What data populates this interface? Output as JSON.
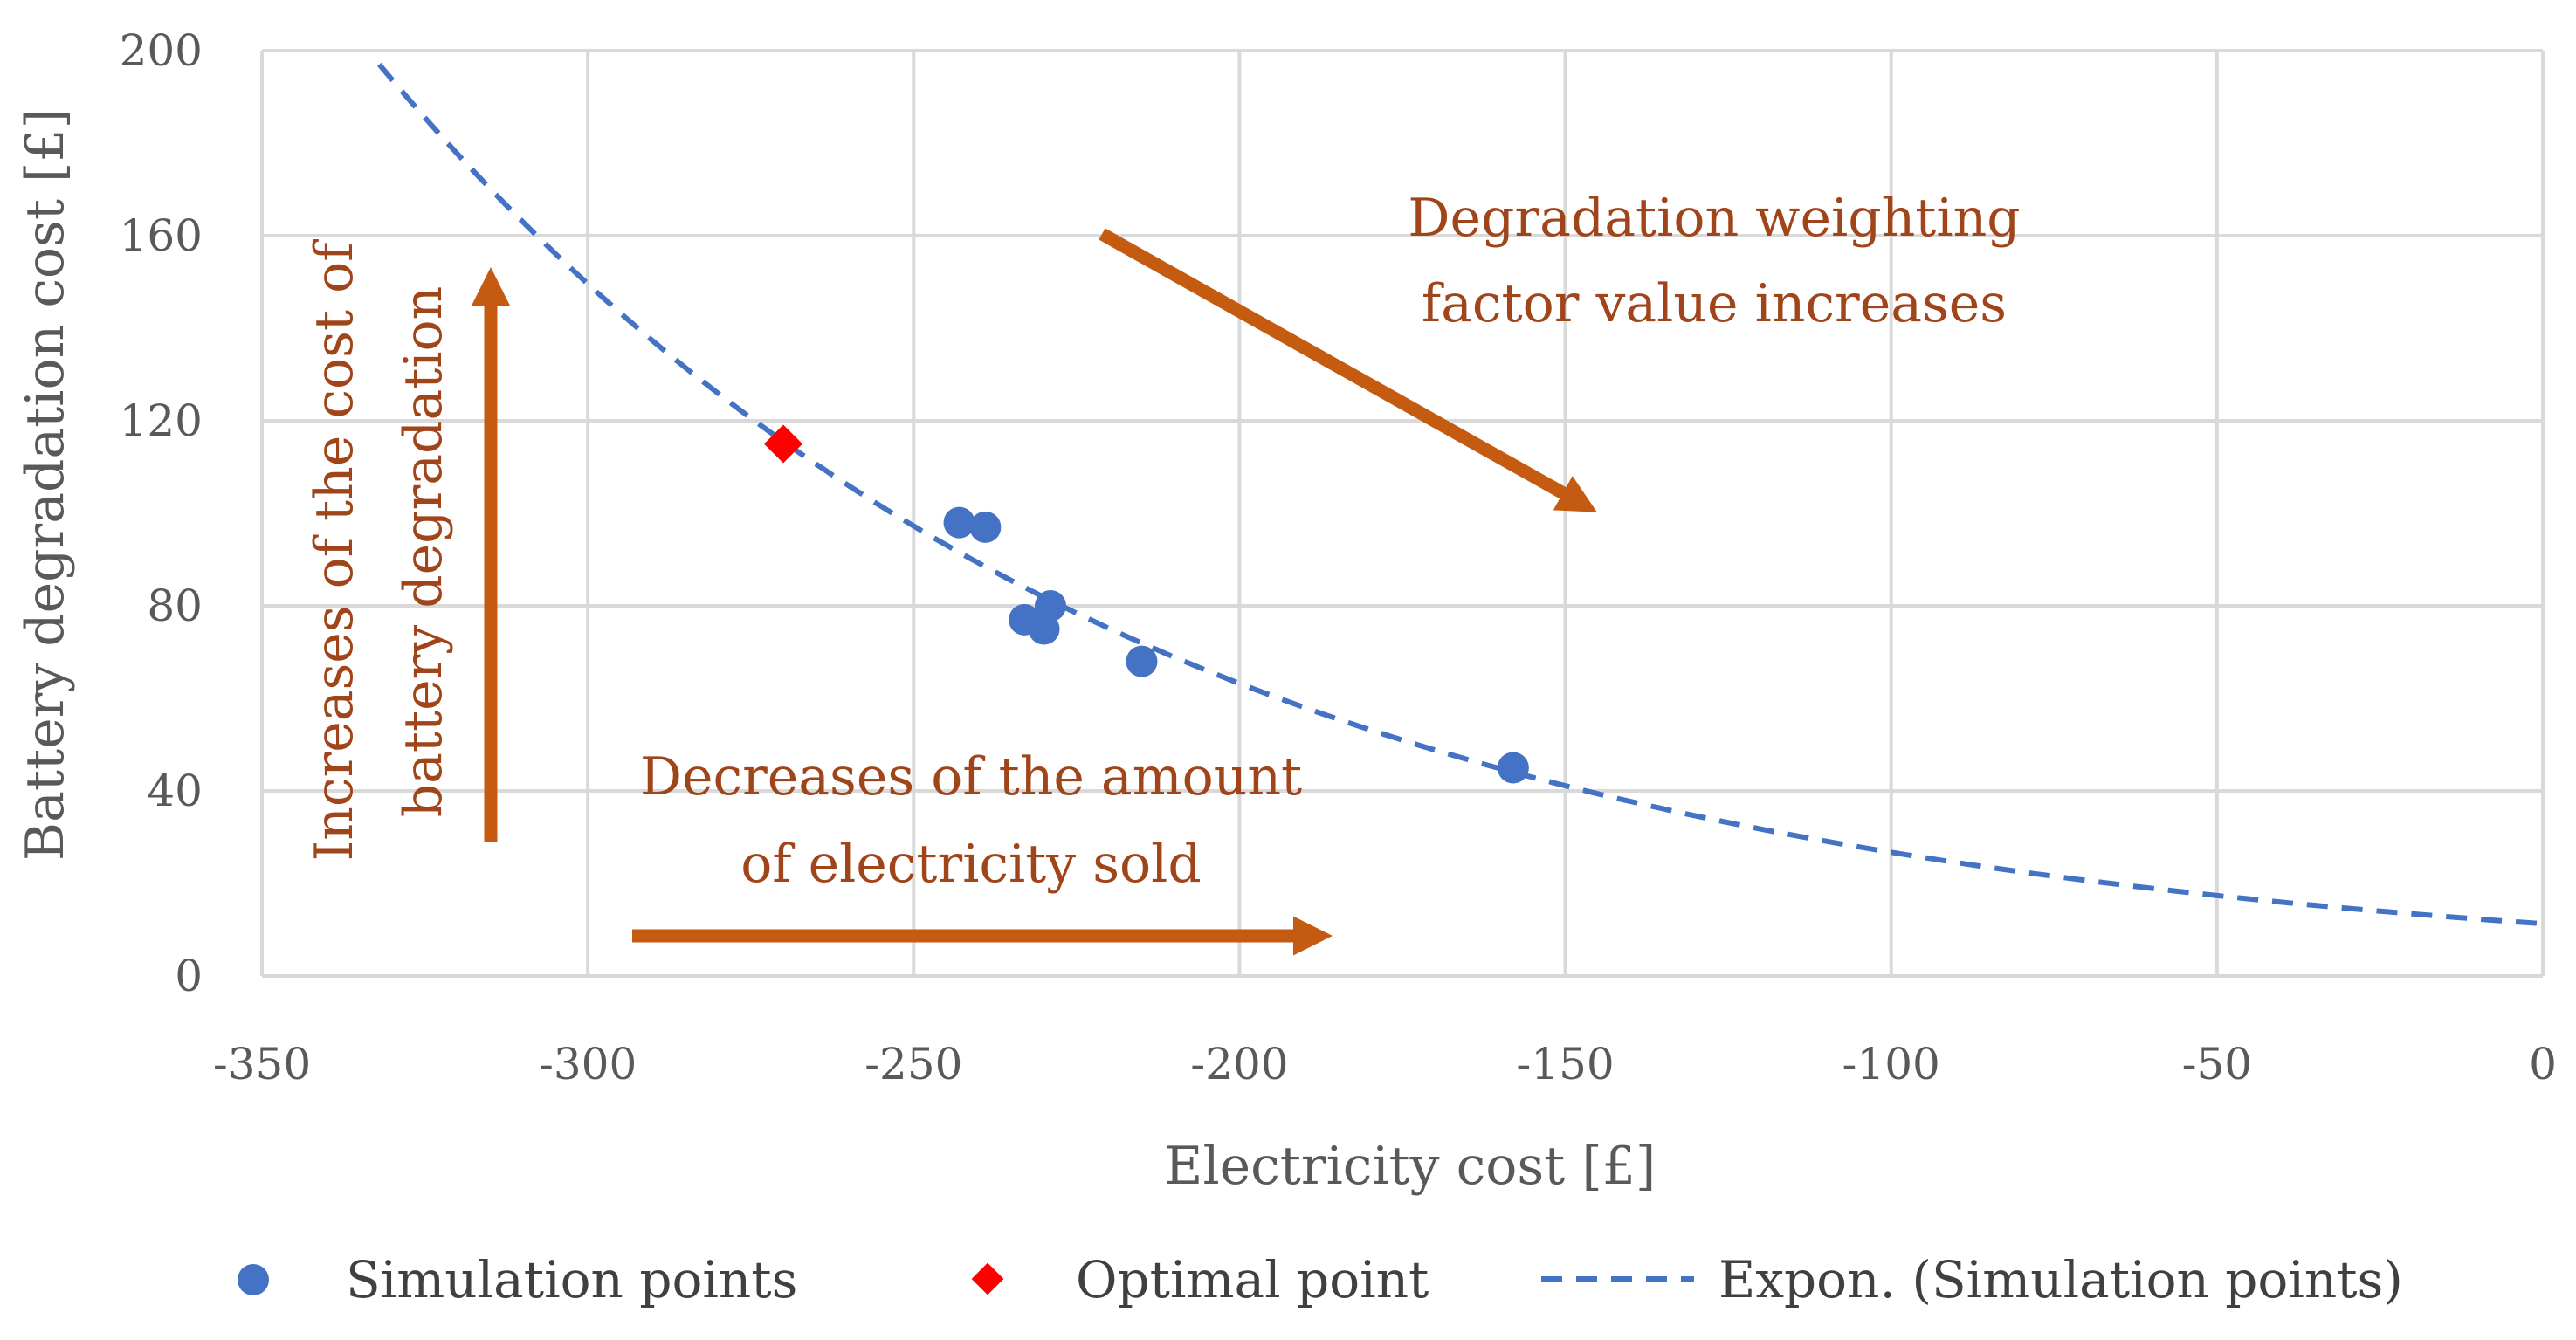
{
  "chart_data": {
    "type": "scatter",
    "title": "",
    "xlabel": "Electricity cost [£]",
    "ylabel": "Battery degradation cost [£]",
    "xlim": [
      -350,
      0
    ],
    "ylim": [
      0,
      200
    ],
    "x_ticks": [
      -350,
      -300,
      -250,
      -200,
      -150,
      -100,
      -50,
      0
    ],
    "y_ticks": [
      0,
      40,
      80,
      120,
      160,
      200
    ],
    "x_tick_labels": [
      "-350",
      "-300",
      "-250",
      "-200",
      "-150",
      "-100",
      "-50",
      "0"
    ],
    "y_tick_labels": [
      "0",
      "40",
      "80",
      "120",
      "160",
      "200"
    ],
    "grid": true,
    "series": [
      {
        "name": "Simulation points",
        "marker": "circle",
        "color": "#4472C4",
        "points": [
          {
            "x": -243,
            "y": 98
          },
          {
            "x": -239,
            "y": 97
          },
          {
            "x": -233,
            "y": 77
          },
          {
            "x": -229,
            "y": 80
          },
          {
            "x": -230,
            "y": 75
          },
          {
            "x": -215,
            "y": 68
          },
          {
            "x": -158,
            "y": 45
          }
        ]
      },
      {
        "name": "Optimal point",
        "marker": "diamond",
        "color": "#FF0000",
        "points": [
          {
            "x": -270,
            "y": 115
          }
        ]
      },
      {
        "name": "Expon. (Simulation points)",
        "type": "exponential-trendline",
        "style": "dashed",
        "color": "#4472C4",
        "formula": "y = 11.3 * exp(-0.00861 * x)",
        "a": 11.3,
        "b": -0.00861,
        "x_range": [
          -332,
          0
        ]
      }
    ],
    "annotations": [
      {
        "name": "degradation-weighting",
        "lines": [
          "Degradation weighting",
          "factor value increases"
        ],
        "color": "#A0441A"
      },
      {
        "name": "increases-battery-degradation",
        "lines": [
          "Increases of the cost of",
          "battery degradation"
        ],
        "color": "#A0441A"
      },
      {
        "name": "decreases-electricity-sold",
        "lines": [
          "Decreases of the amount",
          "of electricity sold"
        ],
        "color": "#A0441A"
      }
    ],
    "arrow_color": "#C55A11",
    "legend": {
      "position": "bottom",
      "entries": [
        "Simulation points",
        "Optimal point",
        "Expon. (Simulation points)"
      ]
    }
  }
}
